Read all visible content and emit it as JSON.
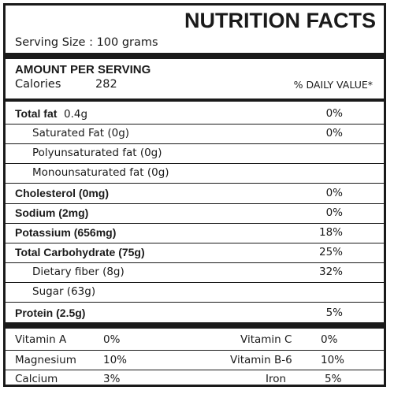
{
  "title": "NUTRITION FACTS",
  "serving_size": "Serving Size : 100 grams",
  "amount_header": "AMOUNT PER SERVING",
  "calories": {
    "label": "Calories",
    "value": "282"
  },
  "daily_value_header": "% DAILY VALUE*",
  "nutrients": [
    {
      "label": "Total fat",
      "amount": "0.4g",
      "dv": "0%"
    },
    {
      "label": "Saturated Fat (0g)",
      "dv": "0%"
    },
    {
      "label": "Polyunsaturated fat (0g)",
      "dv": ""
    },
    {
      "label": "Monounsaturated fat (0g)",
      "dv": ""
    },
    {
      "label": "Cholesterol (0mg)",
      "dv": "0%"
    },
    {
      "label": "Sodium (2mg)",
      "dv": "0%"
    },
    {
      "label": "Potassium (656mg)",
      "dv": "18%"
    },
    {
      "label": "Total Carbohydrate (75g)",
      "dv": "25%"
    },
    {
      "label": "Dietary fiber (8g)",
      "dv": "32%"
    },
    {
      "label": "Sugar (63g)",
      "dv": ""
    },
    {
      "label": "Protein (2.5g)",
      "dv": "5%"
    }
  ],
  "vitamins": [
    {
      "left_label": "Vitamin A",
      "left_value": "0%",
      "right_label": "Vitamin C",
      "right_value": "0%"
    },
    {
      "left_label": "Magnesium",
      "left_value": "10%",
      "right_label": "Vitamin B-6",
      "right_value": "10%"
    },
    {
      "left_label": "Calcium",
      "left_value": "3%",
      "right_label": "Iron",
      "right_value": "5%"
    }
  ]
}
